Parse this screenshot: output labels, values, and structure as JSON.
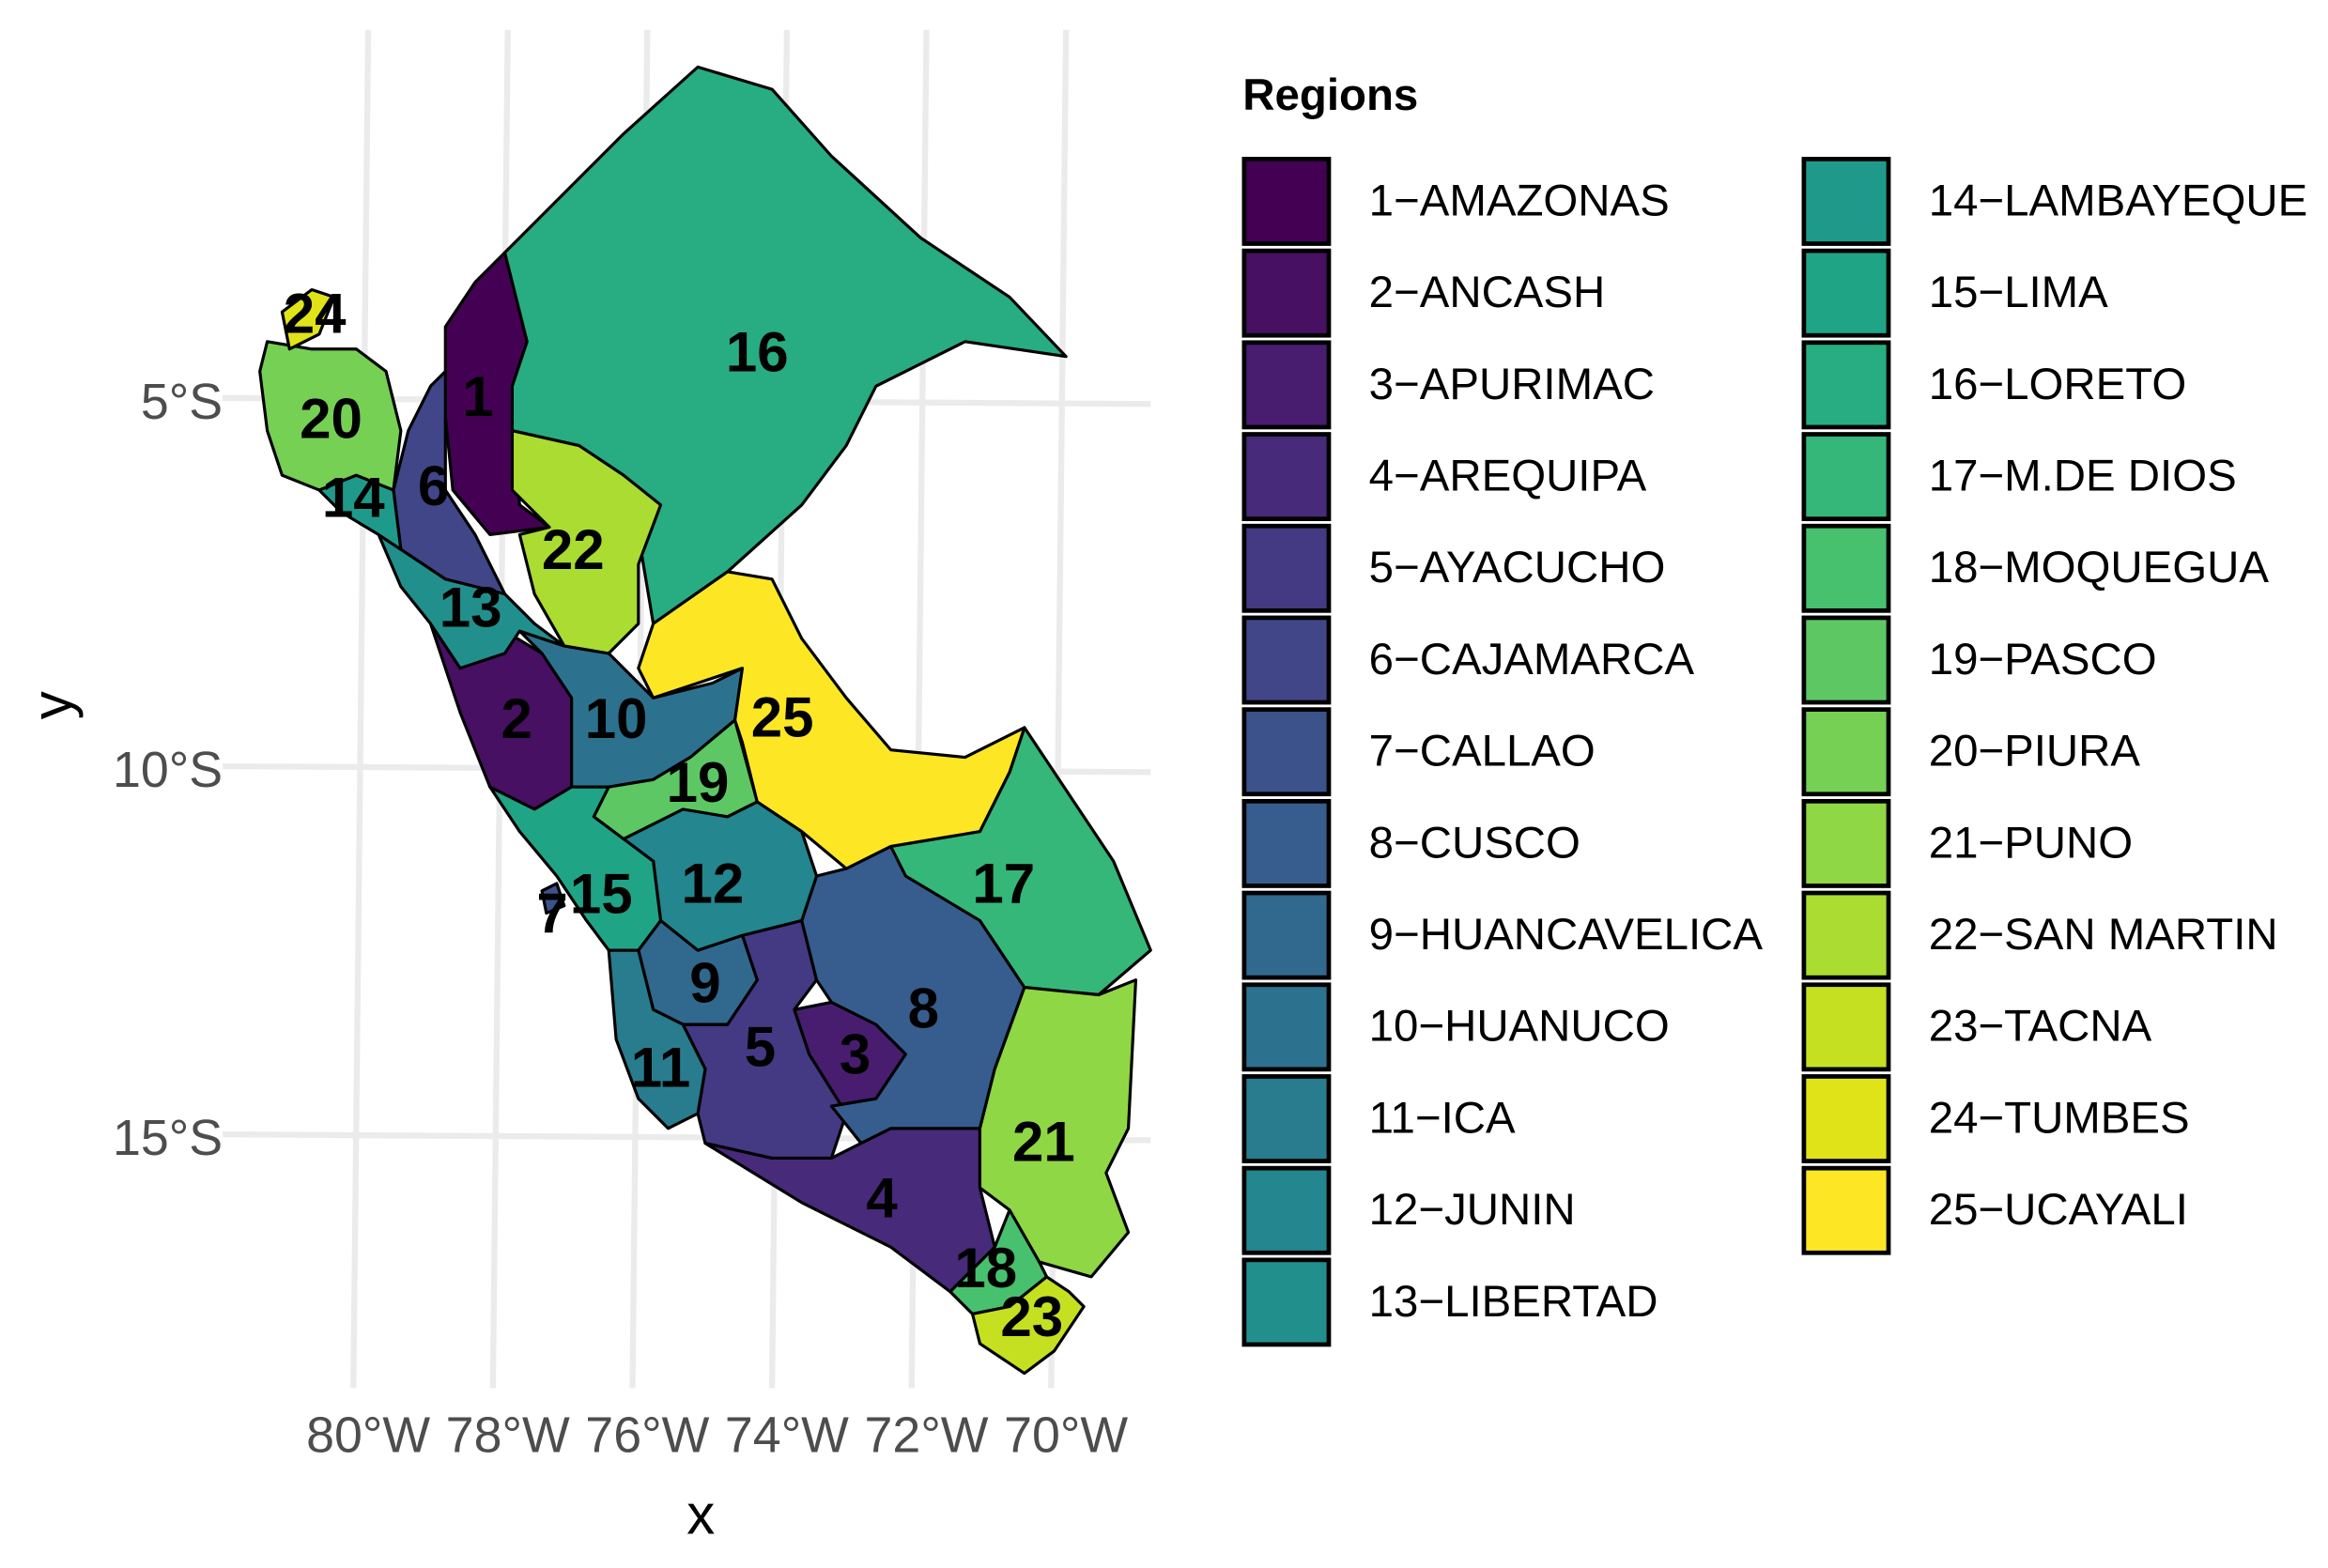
{
  "map": {
    "x_label": "x",
    "y_label": "y",
    "x_ticks": [
      {
        "value": -80,
        "label": "80°W"
      },
      {
        "value": -78,
        "label": "78°W"
      },
      {
        "value": -76,
        "label": "76°W"
      },
      {
        "value": -74,
        "label": "74°W"
      },
      {
        "value": -72,
        "label": "72°W"
      },
      {
        "value": -70,
        "label": "70°W"
      }
    ],
    "y_ticks": [
      {
        "value": -5,
        "label": "5°S"
      },
      {
        "value": -10,
        "label": "10°S"
      },
      {
        "value": -15,
        "label": "15°S"
      }
    ],
    "legend_title": "Regions",
    "regions": [
      {
        "label": "1",
        "name": "1−AMAZONAS",
        "color": "#440154"
      },
      {
        "label": "2",
        "name": "2−ANCASH",
        "color": "#471063"
      },
      {
        "label": "3",
        "name": "3−APURIMAC",
        "color": "#481D6F"
      },
      {
        "label": "4",
        "name": "4−AREQUIPA",
        "color": "#472A7A"
      },
      {
        "label": "5",
        "name": "5−AYACUCHO",
        "color": "#443983"
      },
      {
        "label": "6",
        "name": "6−CAJAMARCA",
        "color": "#404688"
      },
      {
        "label": "7",
        "name": "7−CALLAO",
        "color": "#3B528B"
      },
      {
        "label": "8",
        "name": "8−CUSCO",
        "color": "#365D8D"
      },
      {
        "label": "9",
        "name": "9−HUANCAVELICA",
        "color": "#31688E"
      },
      {
        "label": "10",
        "name": "10−HUANUCO",
        "color": "#2C728E"
      },
      {
        "label": "11",
        "name": "11−ICA",
        "color": "#287C8E"
      },
      {
        "label": "12",
        "name": "12−JUNIN",
        "color": "#24868E"
      },
      {
        "label": "13",
        "name": "13−LIBERTAD",
        "color": "#21908C"
      },
      {
        "label": "14",
        "name": "14−LAMBAYEQUE",
        "color": "#1F9A8A"
      },
      {
        "label": "15",
        "name": "15−LIMA",
        "color": "#20A486"
      },
      {
        "label": "16",
        "name": "16−LORETO",
        "color": "#27AD81"
      },
      {
        "label": "17",
        "name": "17−M.DE DIOS",
        "color": "#35B779"
      },
      {
        "label": "18",
        "name": "18−MOQUEGUA",
        "color": "#47C16E"
      },
      {
        "label": "19",
        "name": "19−PASCO",
        "color": "#5DC863"
      },
      {
        "label": "20",
        "name": "20−PIURA",
        "color": "#75D054"
      },
      {
        "label": "21",
        "name": "21−PUNO",
        "color": "#8FD744"
      },
      {
        "label": "22",
        "name": "22−SAN MARTIN",
        "color": "#AADC32"
      },
      {
        "label": "23",
        "name": "23−TACNA",
        "color": "#C5E021"
      },
      {
        "label": "24",
        "name": "24−TUMBES",
        "color": "#E0E318"
      },
      {
        "label": "25",
        "name": "25−UCAYALI",
        "color": "#FDE725"
      }
    ]
  }
}
